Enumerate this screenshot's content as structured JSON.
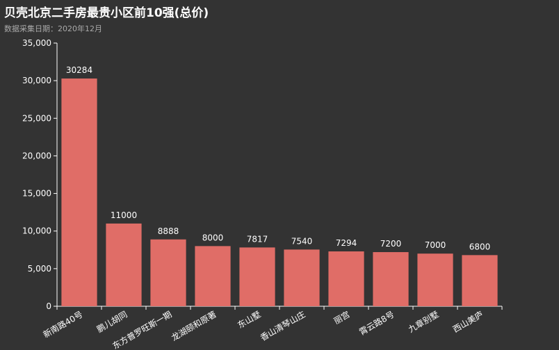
{
  "chart_data": {
    "type": "bar",
    "title": "贝壳北京二手房最贵小区前10强(总价)",
    "subtitle": "数据采集日期：2020年12月",
    "categories": [
      "新南路40号",
      "鹏儿胡同",
      "东方普罗旺斯一期",
      "龙湖颐和原著",
      "东山墅",
      "香山清琴山庄",
      "丽宫",
      "霄云路8号",
      "九章别墅",
      "西山美庐"
    ],
    "values": [
      30284,
      11000,
      8888,
      8000,
      7817,
      7540,
      7294,
      7200,
      7000,
      6800
    ],
    "ylim": [
      0,
      35000
    ],
    "yticks": [
      "0",
      "5,000",
      "10,000",
      "15,000",
      "20,000",
      "25,000",
      "30,000",
      "35,000"
    ],
    "xlabel": "",
    "ylabel": "",
    "grid": false,
    "colors": {
      "bar": "#e06d67",
      "axis": "#ffffff",
      "background": "#333333"
    }
  }
}
